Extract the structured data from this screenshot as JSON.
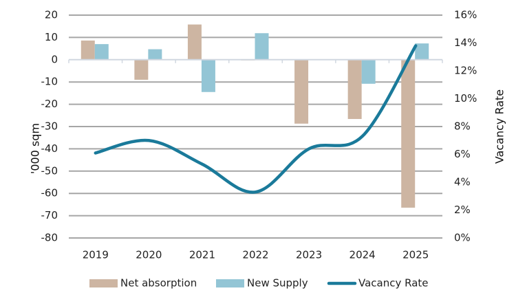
{
  "chart_data": {
    "type": "bar",
    "title": "",
    "categories": [
      "2019",
      "2020",
      "2021",
      "2022",
      "2023",
      "2024",
      "2025"
    ],
    "series": [
      {
        "name": "Net absorption",
        "type": "bar",
        "axis": "left",
        "color": "#CDB5A2",
        "values": [
          8.6,
          -9.0,
          15.8,
          -0.3,
          -28.7,
          -26.6,
          -66.4
        ]
      },
      {
        "name": "New Supply",
        "type": "bar",
        "axis": "left",
        "color": "#93C5D5",
        "values": [
          7.0,
          4.7,
          -14.5,
          11.9,
          0,
          -10.8,
          7.3
        ]
      },
      {
        "name": "Vacancy Rate",
        "type": "line",
        "axis": "right",
        "color": "#1A7A9A",
        "smooth": true,
        "values": [
          6.1,
          7.0,
          5.3,
          3.3,
          6.4,
          7.3,
          13.8
        ]
      }
    ],
    "ylabel": "'000 sqm",
    "ylim": [
      -80,
      20
    ],
    "yticks": [
      "20",
      "10",
      "0",
      "-10",
      "-20",
      "-30",
      "-40",
      "-50",
      "-60",
      "-70",
      "-80"
    ],
    "ytick_values": [
      20,
      10,
      0,
      -10,
      -20,
      -30,
      -40,
      -50,
      -60,
      -70,
      -80
    ],
    "y2label": "Vacancy Rate",
    "y2lim": [
      0,
      16
    ],
    "y2ticks": [
      "16%",
      "14%",
      "12%",
      "10%",
      "8%",
      "6%",
      "4%",
      "2%",
      "0%"
    ],
    "y2tick_values": [
      16,
      14,
      12,
      10,
      8,
      6,
      4,
      2,
      0
    ],
    "xlabel": "",
    "grid": true,
    "gridline_color": "#A6A6A6",
    "zero_axis_color": "#D0D7E0",
    "legend_position": "bottom",
    "legend": [
      "Net absorption",
      "New Supply",
      "Vacancy Rate"
    ]
  }
}
